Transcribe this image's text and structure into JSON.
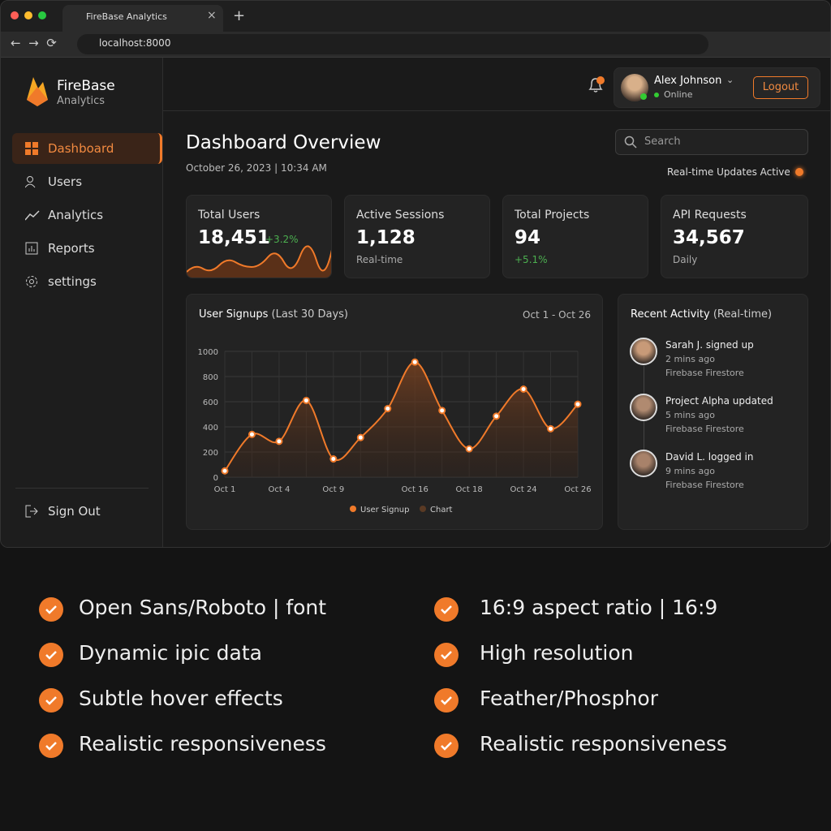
{
  "browser": {
    "tab_title": "FireBase Analytics",
    "url": "localhost:8000"
  },
  "sidebar": {
    "brand": "FireBase",
    "brand_sub": "Analytics",
    "nav": [
      "Dashboard",
      "Users",
      "Analytics",
      "Reports",
      "settings"
    ],
    "sign_out": "Sign Out"
  },
  "topbar": {
    "user_name": "Alex Johnson",
    "status": "Online",
    "logout": "Logout"
  },
  "header": {
    "title": "Dashboard Overview",
    "datetime": "October 26, 2023 | 10:34 AM",
    "search_placeholder": "Search",
    "realtime": "Real-time Updates Active"
  },
  "stats": [
    {
      "label": "Total Users",
      "value": "18,451",
      "note": "+3.2%"
    },
    {
      "label": "Active Sessions",
      "value": "1,128",
      "note": "Real-time"
    },
    {
      "label": "Total Projects",
      "value": "94",
      "note": "+5.1%"
    },
    {
      "label": "API Requests",
      "value": "34,567",
      "note": "Daily"
    }
  ],
  "chart_data": {
    "type": "line",
    "title": "User Signups",
    "title_suffix": "(Last 30 Days)",
    "range_label": "Oct 1 - Oct 26",
    "categories": [
      "Oct 1",
      null,
      "Oct 4",
      null,
      "Oct 9",
      null,
      null,
      "Oct 16",
      null,
      "Oct 18",
      null,
      "Oct 24",
      null,
      "Oct 26"
    ],
    "series": [
      {
        "name": "User Signup",
        "color": "#f07a2a",
        "values": [
          50,
          340,
          285,
          610,
          145,
          315,
          545,
          915,
          530,
          225,
          485,
          700,
          385,
          580
        ]
      }
    ],
    "area_name": "Chart",
    "area_color": "#5a3a24",
    "ylim": [
      0,
      1000
    ],
    "yticks": [
      0,
      200,
      400,
      600,
      800,
      1000
    ],
    "grid": true
  },
  "activity": {
    "title": "Recent Activity",
    "title_suffix": "(Real-time)",
    "items": [
      {
        "title": "Sarah J. signed up",
        "time": "2 mins ago",
        "source": "Firebase Firestore"
      },
      {
        "title": "Project Alpha updated",
        "time": "5 mins ago",
        "source": "Firebase Firestore"
      },
      {
        "title": "David L. logged in",
        "time": "9 mins ago",
        "source": "Firebase Firestore"
      }
    ]
  },
  "features": [
    "Open Sans/Roboto | font",
    "Dynamic ipic data",
    "Subtle hover effects",
    "Realistic responsiveness",
    "16:9 aspect ratio | 16:9",
    "High resolution",
    "Feather/Phosphor",
    "Realistic responsiveness"
  ]
}
